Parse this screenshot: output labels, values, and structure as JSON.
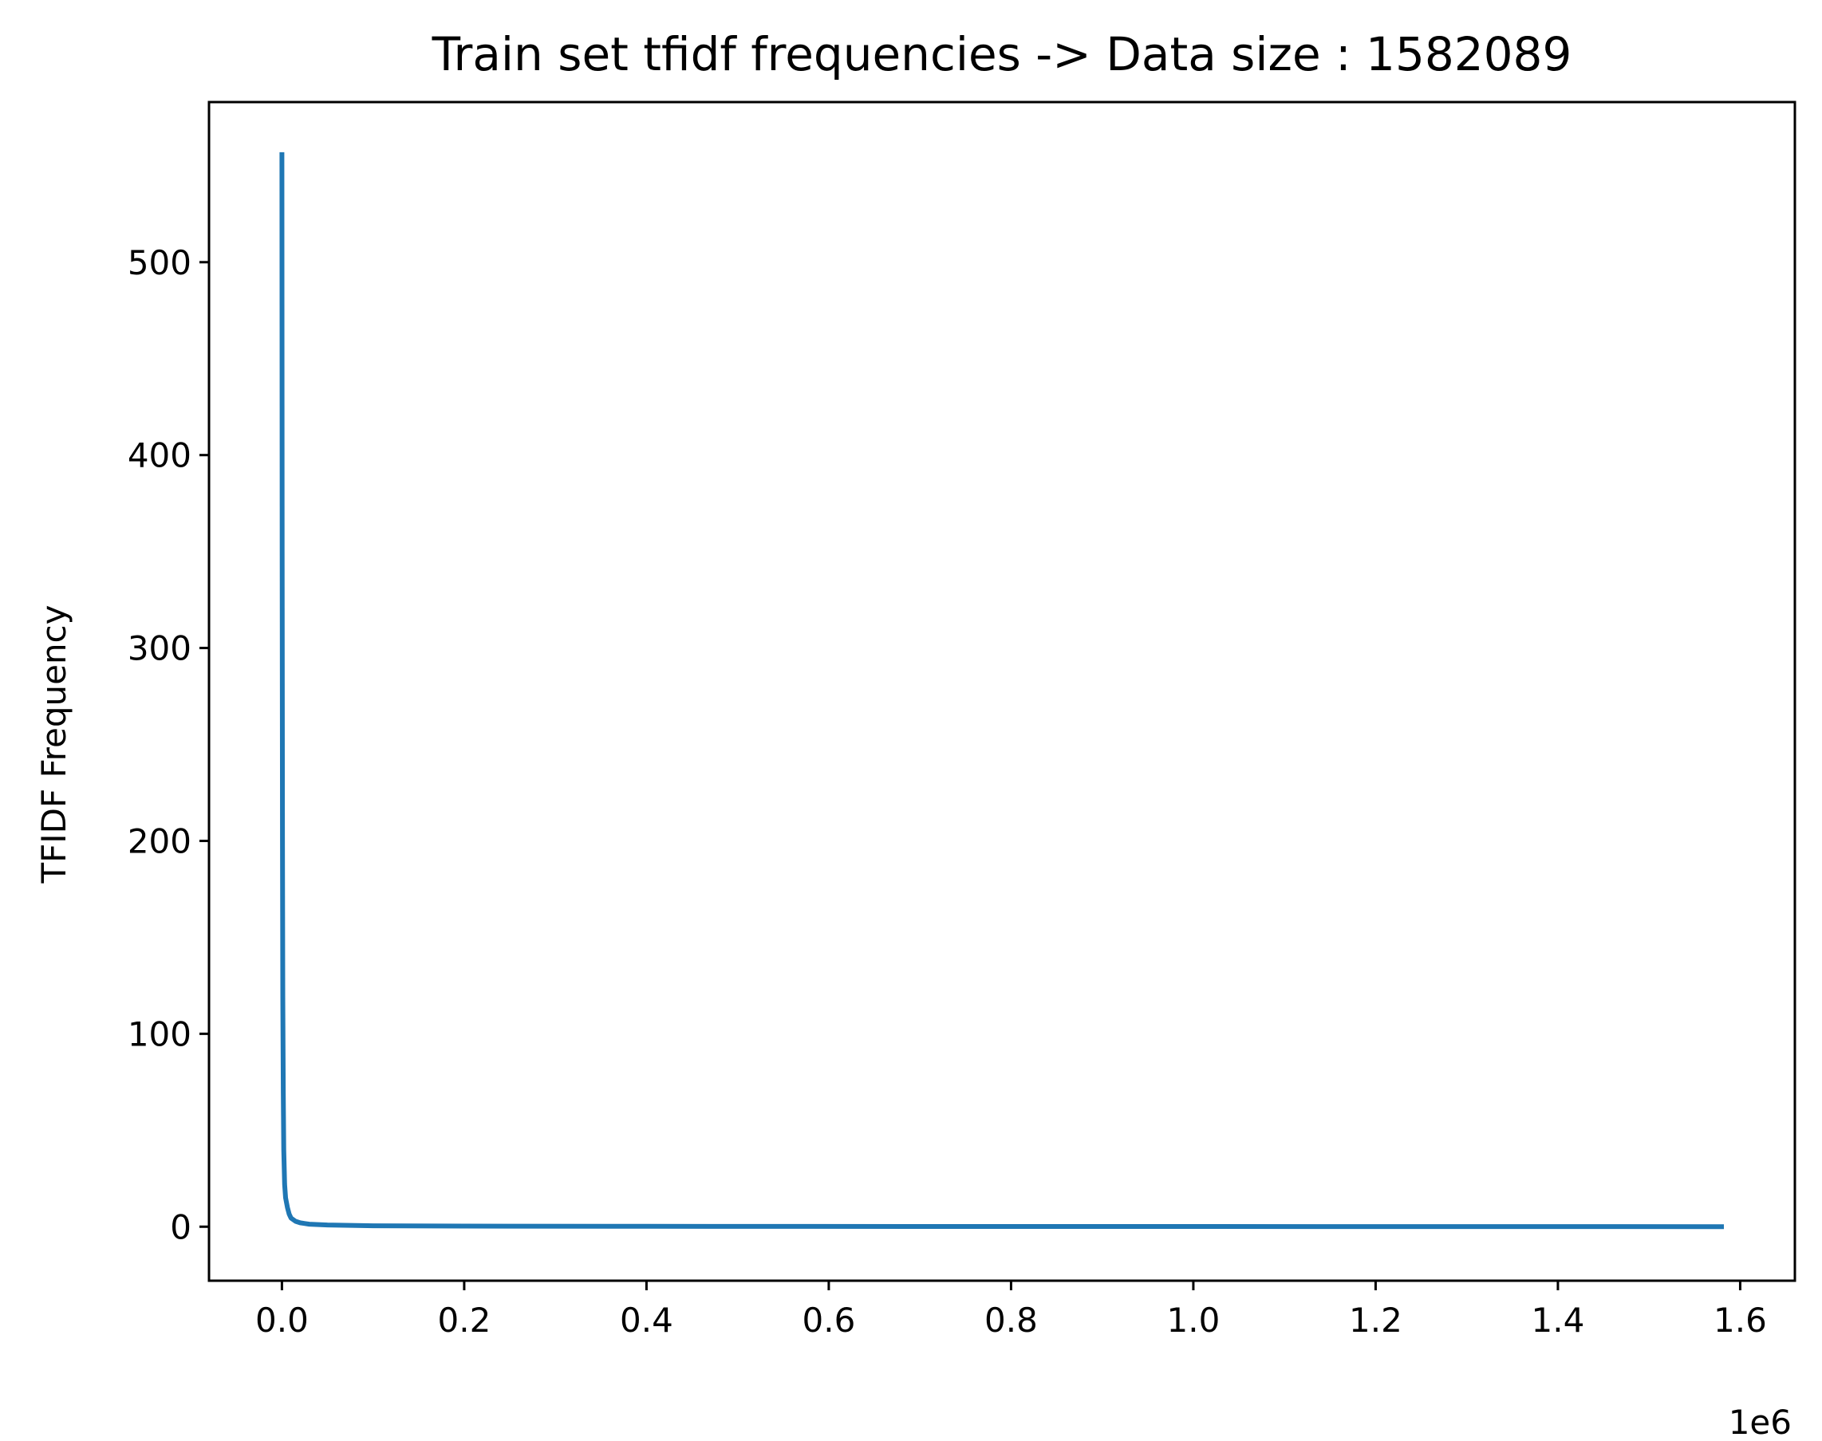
{
  "chart_data": {
    "type": "line",
    "title": "Train set tfidf frequencies -> Data size : 1582089",
    "xlabel": "",
    "ylabel": "TFIDF Frequency",
    "x_offset_label": "1e6",
    "xlim": [
      -80000,
      1660000
    ],
    "ylim": [
      -28,
      583
    ],
    "x_ticks": [
      0,
      200000,
      400000,
      600000,
      800000,
      1000000,
      1200000,
      1400000,
      1600000
    ],
    "x_tick_labels": [
      "0.0",
      "0.2",
      "0.4",
      "0.6",
      "0.8",
      "1.0",
      "1.2",
      "1.4",
      "1.6"
    ],
    "y_ticks": [
      0,
      100,
      200,
      300,
      400,
      500
    ],
    "y_tick_labels": [
      "0",
      "100",
      "200",
      "300",
      "400",
      "500"
    ],
    "grid": false,
    "series": [
      {
        "color": "#1f77b4",
        "x": [
          0,
          300,
          600,
          1000,
          1500,
          2000,
          3000,
          4000,
          6000,
          8000,
          10000,
          15000,
          20000,
          30000,
          50000,
          100000,
          200000,
          400000,
          800000,
          1200000,
          1582089
        ],
        "y": [
          557,
          350,
          200,
          120,
          70,
          40,
          22,
          15,
          10,
          6.5,
          4.5,
          2.8,
          2.0,
          1.3,
          0.9,
          0.5,
          0.3,
          0.2,
          0.1,
          0.05,
          0.02
        ]
      }
    ]
  }
}
